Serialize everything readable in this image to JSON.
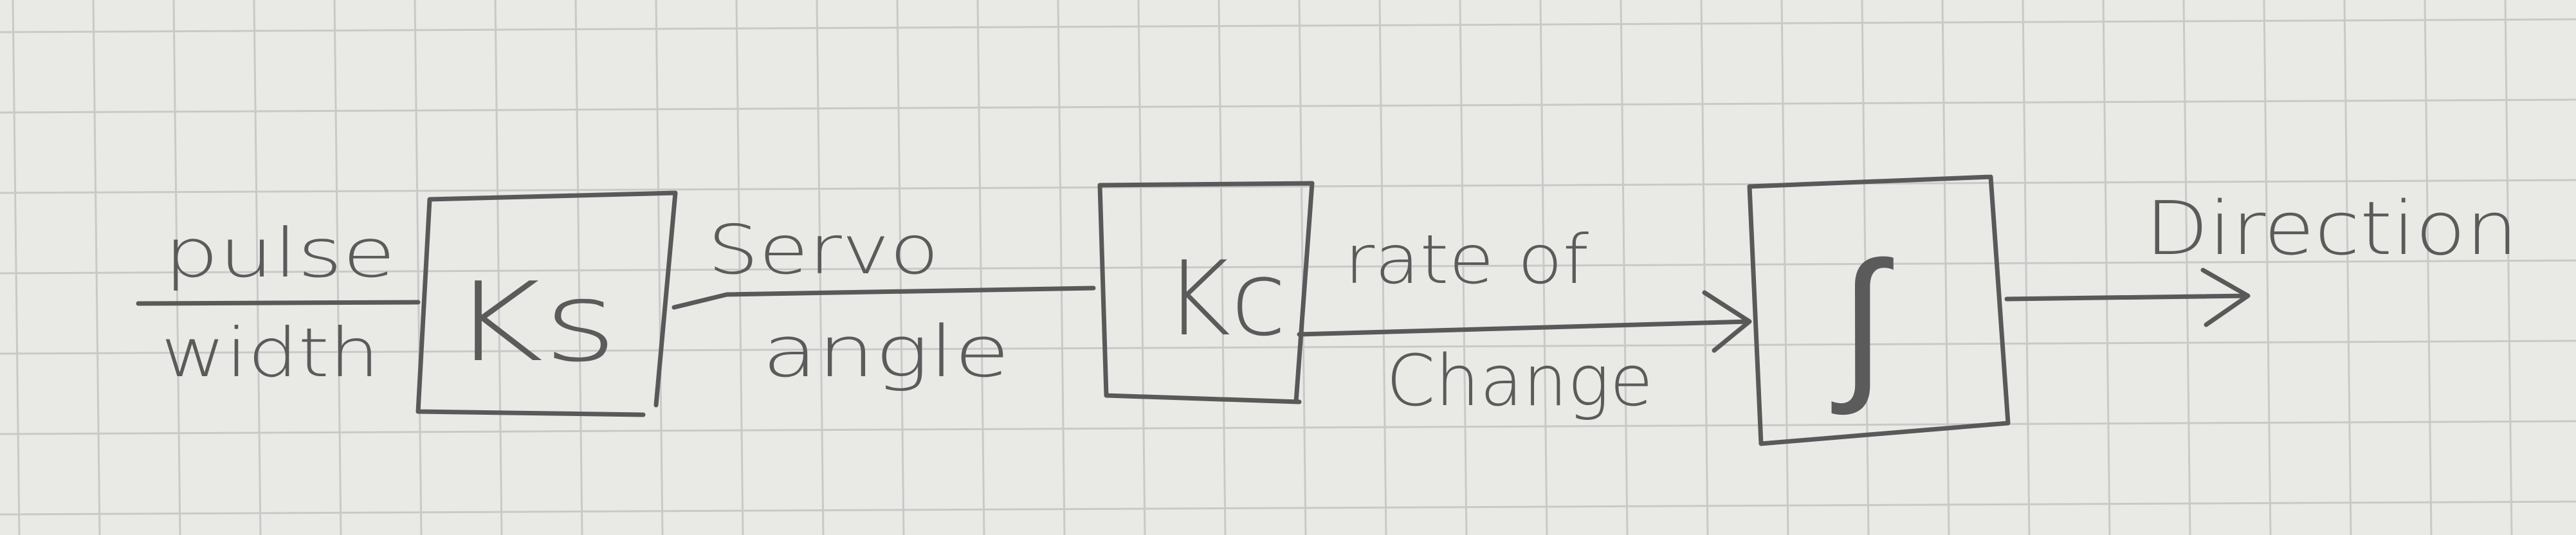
{
  "diagram": {
    "blocks": [
      {
        "id": "ks",
        "label": "Ks"
      },
      {
        "id": "kc",
        "label": "Kc"
      },
      {
        "id": "integrator",
        "label": "∫"
      }
    ],
    "signals": {
      "input_top": "pulse",
      "input_bottom": "width",
      "servo_top": "Servo",
      "servo_bottom": "angle",
      "rate_top": "rate of",
      "rate_bottom": "Change",
      "output": "Direction"
    }
  }
}
